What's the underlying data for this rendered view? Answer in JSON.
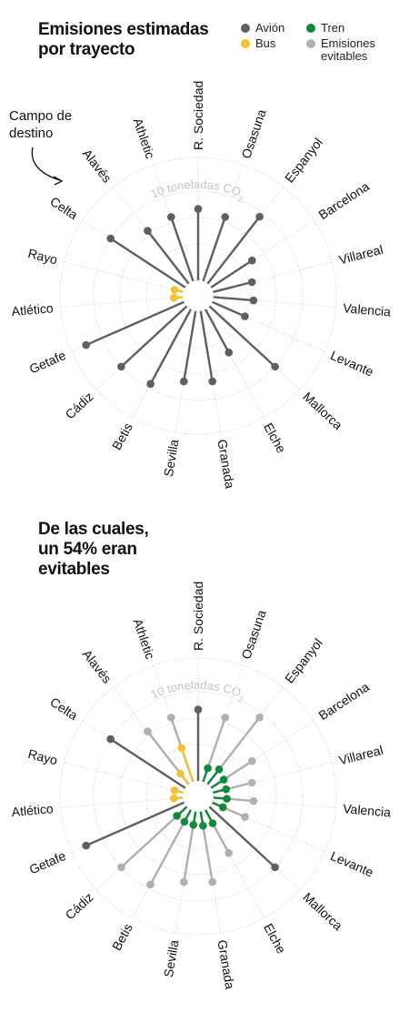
{
  "colors": {
    "avion": "#5f5f5f",
    "bus": "#f2c12e",
    "tren": "#0f8a3c",
    "evitables": "#b0b0b0",
    "grid": "#cfcfcf"
  },
  "legend": {
    "avion": "Avión",
    "bus": "Bus",
    "tren": "Tren",
    "evitables_line1": "Emisiones",
    "evitables_line2": "evitables"
  },
  "annotation": {
    "line1": "Campo de",
    "line2": "destino",
    "icon": "curved-arrow-icon"
  },
  "chart_data": [
    {
      "type": "radial-lollipop",
      "title_line1": "Emisiones estimadas",
      "title_line2": "por trayecto",
      "ring_label": "10 toneladas CO",
      "ring_label_sub": "2",
      "ring_value": 10,
      "rmax": 20,
      "categories": [
        "R. Sociedad",
        "Osasuna",
        "Espanyol",
        "Barcelona",
        "Villareal",
        "Valencia",
        "Levante",
        "Mallorca",
        "Elche",
        "Granada",
        "Sevilla",
        "Betis",
        "Cádiz",
        "Getafe",
        "Atlético",
        "Rayo",
        "Celta",
        "Alavés",
        "Athletic"
      ],
      "modes": [
        "avion",
        "avion",
        "avion",
        "avion",
        "avion",
        "avion",
        "avion",
        "avion",
        "avion",
        "avion",
        "avion",
        "avion",
        "avion",
        "avion",
        "bus",
        "bus",
        "avion",
        "avion",
        "avion"
      ],
      "values": [
        8.0,
        7.6,
        9.5,
        5.5,
        4.5,
        4.5,
        4.0,
        10.0,
        5.5,
        8.0,
        8.0,
        9.5,
        10.0,
        12.0,
        1.0,
        1.0,
        10.0,
        7.5,
        7.6
      ]
    },
    {
      "type": "radial-lollipop",
      "title_line1": "De las cuales,",
      "title_line2": "un 54% eran",
      "title_line3": "evitables",
      "ring_label": "10 toneladas CO",
      "ring_label_sub": "2",
      "ring_value": 10,
      "rmax": 20,
      "categories": [
        "R. Sociedad",
        "Osasuna",
        "Espanyol",
        "Barcelona",
        "Villareal",
        "Valencia",
        "Levante",
        "Mallorca",
        "Elche",
        "Granada",
        "Sevilla",
        "Betis",
        "Cádiz",
        "Getafe",
        "Atlético",
        "Rayo",
        "Celta",
        "Alavés",
        "Athletic"
      ],
      "modes": [
        "avion",
        "tren",
        "tren",
        "tren",
        "tren",
        "tren",
        "tren",
        "avion",
        "tren",
        "tren",
        "tren",
        "tren",
        "tren",
        "avion",
        "bus",
        "bus",
        "avion",
        "bus",
        "bus"
      ],
      "values": [
        8.0,
        1.6,
        2.1,
        1.7,
        1.5,
        1.5,
        1.3,
        10.0,
        1.7,
        1.6,
        1.5,
        1.5,
        1.5,
        12.0,
        1.0,
        1.0,
        10.0,
        1.5,
        4.0
      ],
      "evitables": [
        0,
        7.6,
        9.5,
        5.5,
        4.5,
        4.5,
        4.0,
        0,
        5.5,
        8.0,
        8.0,
        9.5,
        10.0,
        0,
        0,
        0,
        0,
        7.5,
        7.6
      ]
    }
  ]
}
